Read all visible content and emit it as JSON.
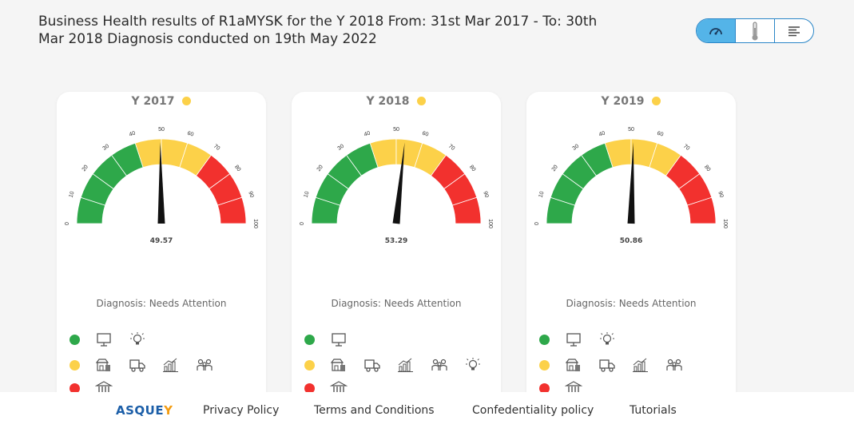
{
  "header": {
    "title": "Business Health results of R1aMYSK for the Y 2018 From: 31st Mar 2017 - To: 30th Mar 2018 Diagnosis conducted on 19th May 2022"
  },
  "view_toggle": [
    "speedometer-icon",
    "thermometer-icon",
    "list-icon"
  ],
  "gauge_ticks": [
    "0",
    "10",
    "20",
    "30",
    "40",
    "50",
    "60",
    "70",
    "80",
    "90",
    "100"
  ],
  "colors": {
    "green": "#2ea84a",
    "yellow": "#fcd149",
    "red": "#f2312e",
    "needle": "#111111"
  },
  "cards": [
    {
      "year": "Y 2017",
      "value": 49.57,
      "value_label": "49.57",
      "diagnosis": "Diagnosis: Needs Attention"
    },
    {
      "year": "Y 2018",
      "value": 53.29,
      "value_label": "53.29",
      "diagnosis": "Diagnosis: Needs Attention"
    },
    {
      "year": "Y 2019",
      "value": 50.86,
      "value_label": "50.86",
      "diagnosis": "Diagnosis: Needs Attention"
    }
  ],
  "legend": {
    "green": [
      "monitor-icon",
      "lightbulb-icon"
    ],
    "yellow": [
      "store-icon",
      "truck-icon",
      "bar-chart-icon",
      "people-icon",
      "lightbulb-icon"
    ],
    "red": [
      "bank-icon"
    ]
  },
  "footer": {
    "logo_main": "ASQUE",
    "logo_accent": "Y",
    "links": [
      "Privacy Policy",
      "Terms and Conditions",
      "Confedentiality policy",
      "Tutorials"
    ]
  }
}
